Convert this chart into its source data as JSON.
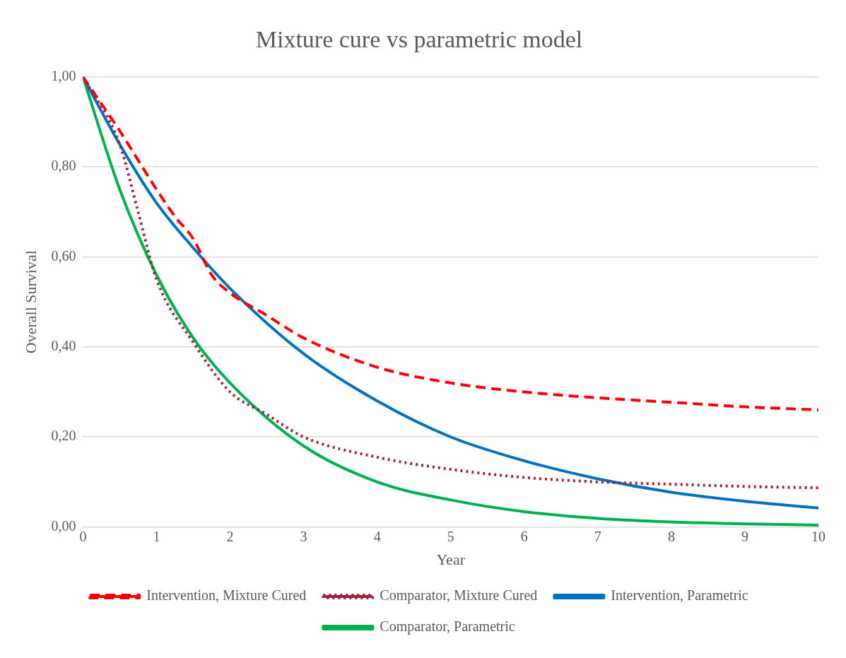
{
  "chart_data": {
    "type": "line",
    "title": "Mixture cure vs parametric model",
    "xlabel": "Year",
    "ylabel": "Overall Survival",
    "xlim": [
      0,
      10
    ],
    "xticks": [
      0,
      1,
      2,
      3,
      4,
      5,
      6,
      7,
      8,
      9,
      10
    ],
    "ylim": [
      0,
      1
    ],
    "yticks": [
      {
        "value": 0,
        "label": "0,00"
      },
      {
        "value": 0.2,
        "label": "0,20"
      },
      {
        "value": 0.4,
        "label": "0,40"
      },
      {
        "value": 0.6,
        "label": "0,60"
      },
      {
        "value": 0.8,
        "label": "0,80"
      },
      {
        "value": 1,
        "label": "1,00"
      }
    ],
    "grid": "y",
    "legend": "bottom",
    "marker": "none",
    "series": [
      {
        "name": "Intervention, Mixture Cured",
        "color": "#ff0000",
        "line_style": "dashed",
        "x": [
          0,
          0.5,
          1,
          1.25,
          1.5,
          1.75,
          2,
          2.5,
          3,
          4,
          5,
          6,
          7,
          8,
          9,
          10
        ],
        "values": [
          1,
          0.88,
          0.75,
          0.69,
          0.64,
          0.56,
          0.52,
          0.47,
          0.42,
          0.355,
          0.32,
          0.3,
          0.287,
          0.277,
          0.267,
          0.26
        ]
      },
      {
        "name": "Comparator, Mixture Cured",
        "color": "#9b2335",
        "line_style": "dotted",
        "x": [
          0,
          0.5,
          0.75,
          1,
          1.5,
          2,
          2.5,
          3,
          4,
          5,
          6,
          7,
          8,
          9,
          10
        ],
        "values": [
          1,
          0.85,
          0.7,
          0.55,
          0.41,
          0.3,
          0.25,
          0.2,
          0.155,
          0.128,
          0.11,
          0.1,
          0.095,
          0.09,
          0.087
        ]
      },
      {
        "name": "Intervention, Parametric",
        "color": "#0070c0",
        "line_style": "solid",
        "x": [
          0,
          0.5,
          1,
          1.5,
          2,
          3,
          4,
          5,
          6,
          7,
          8,
          9,
          10
        ],
        "values": [
          1,
          0.85,
          0.72,
          0.62,
          0.53,
          0.385,
          0.28,
          0.2,
          0.147,
          0.107,
          0.077,
          0.057,
          0.042
        ]
      },
      {
        "name": "Comparator, Parametric",
        "color": "#00b050",
        "line_style": "solid",
        "x": [
          0,
          0.5,
          1,
          1.5,
          2,
          3,
          4,
          5,
          6,
          7,
          8,
          9,
          10
        ],
        "values": [
          1,
          0.75,
          0.56,
          0.42,
          0.32,
          0.18,
          0.1,
          0.06,
          0.034,
          0.019,
          0.011,
          0.007,
          0.004
        ]
      }
    ]
  }
}
